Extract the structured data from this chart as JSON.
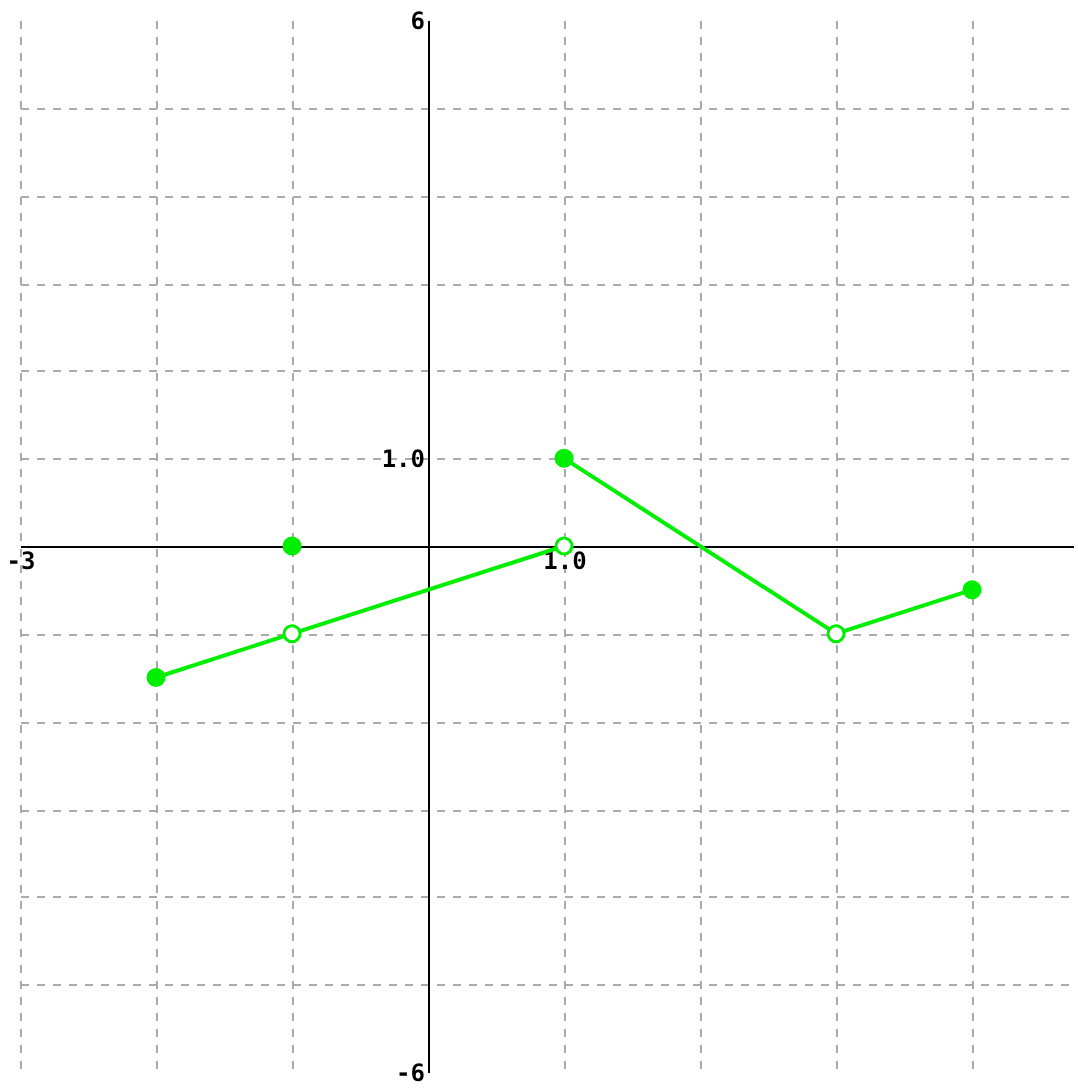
{
  "chart_data": {
    "type": "line",
    "xlim": [
      -3,
      4.75
    ],
    "ylim": [
      -6,
      6
    ],
    "xticks": [
      {
        "value": -3,
        "label": "-3"
      },
      {
        "value": -2,
        "label": null
      },
      {
        "value": -1,
        "label": null
      },
      {
        "value": 1,
        "label": "1.0"
      },
      {
        "value": 2,
        "label": null
      },
      {
        "value": 3,
        "label": null
      },
      {
        "value": 4,
        "label": null
      }
    ],
    "yticks": [
      {
        "value": -6,
        "label": "-6"
      },
      {
        "value": -5,
        "label": null
      },
      {
        "value": -4,
        "label": null
      },
      {
        "value": -3,
        "label": null
      },
      {
        "value": -2,
        "label": null
      },
      {
        "value": -1,
        "label": null
      },
      {
        "value": 1,
        "label": "1.0"
      },
      {
        "value": 2,
        "label": null
      },
      {
        "value": 3,
        "label": null
      },
      {
        "value": 4,
        "label": null
      },
      {
        "value": 5,
        "label": null
      },
      {
        "value": 6,
        "label": "6"
      }
    ],
    "grid": true,
    "series": [
      {
        "marker": "none",
        "line_style": "solid",
        "color": "#00ee00",
        "x": [
          -2,
          -1,
          1
        ],
        "values": [
          -1.5,
          -1,
          0
        ]
      },
      {
        "marker": "none",
        "line_style": "solid",
        "color": "#00ee00",
        "x": [
          1,
          3,
          4
        ],
        "values": [
          1,
          -1,
          -0.5
        ]
      },
      {
        "type": "scatter",
        "marker": "circle",
        "color": "#00ee00",
        "x": [
          -2,
          -1,
          1,
          4
        ],
        "values": [
          -1.5,
          0,
          1,
          -0.5
        ]
      },
      {
        "type": "scatter",
        "marker": "circle",
        "color": "#ffffff",
        "x": [
          -1,
          1,
          3
        ],
        "values": [
          -1,
          0,
          -1
        ]
      }
    ]
  }
}
